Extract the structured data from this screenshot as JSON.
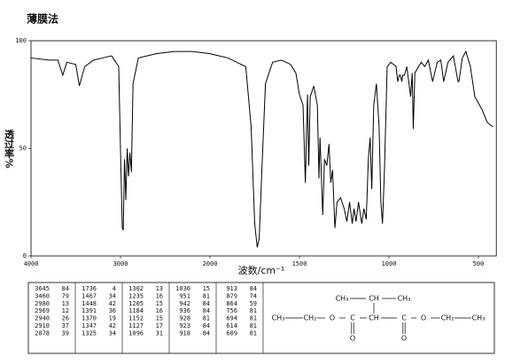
{
  "title": "薄膜法",
  "chart_data": {
    "type": "line",
    "xlabel": "波数/cm⁻¹",
    "ylabel": "透过率%",
    "xlim": [
      4000,
      400
    ],
    "ylim": [
      0,
      100
    ],
    "xticks": [
      4000,
      3000,
      2000,
      1500,
      1000,
      500
    ],
    "yticks": [
      0,
      50,
      100
    ],
    "color": "#000000",
    "x": [
      4000,
      3800,
      3700,
      3645,
      3600,
      3500,
      3460,
      3400,
      3300,
      3200,
      3100,
      3020,
      2995,
      2980,
      2969,
      2955,
      2940,
      2925,
      2910,
      2895,
      2878,
      2860,
      2800,
      2600,
      2400,
      2200,
      2000,
      1900,
      1800,
      1770,
      1750,
      1736,
      1725,
      1710,
      1690,
      1650,
      1600,
      1550,
      1520,
      1500,
      1480,
      1467,
      1460,
      1455,
      1448,
      1440,
      1420,
      1400,
      1391,
      1385,
      1370,
      1360,
      1347,
      1335,
      1325,
      1315,
      1302,
      1290,
      1270,
      1250,
      1235,
      1220,
      1205,
      1195,
      1184,
      1170,
      1152,
      1140,
      1127,
      1115,
      1105,
      1096,
      1085,
      1070,
      1055,
      1045,
      1036,
      1025,
      1010,
      990,
      960,
      951,
      942,
      936,
      928,
      923,
      918,
      913,
      900,
      879,
      870,
      864,
      855,
      820,
      800,
      780,
      756,
      730,
      710,
      694,
      670,
      640,
      614,
      609,
      590,
      570,
      545,
      520,
      480,
      450,
      420
    ],
    "values": [
      92,
      91,
      91,
      84,
      90,
      89,
      79,
      88,
      91,
      92,
      93,
      88,
      40,
      13,
      12,
      45,
      26,
      50,
      37,
      48,
      39,
      80,
      92,
      94,
      95,
      95,
      94,
      92,
      88,
      60,
      15,
      4,
      8,
      40,
      80,
      90,
      91,
      89,
      85,
      75,
      70,
      34,
      60,
      75,
      42,
      74,
      79,
      70,
      36,
      55,
      19,
      45,
      42,
      52,
      34,
      40,
      13,
      25,
      27,
      22,
      16,
      25,
      15,
      22,
      16,
      25,
      15,
      22,
      17,
      45,
      55,
      31,
      70,
      80,
      60,
      25,
      15,
      40,
      88,
      90,
      88,
      81,
      84,
      84,
      81,
      84,
      84,
      84,
      88,
      74,
      85,
      59,
      85,
      90,
      88,
      91,
      81,
      90,
      91,
      81,
      90,
      93,
      81,
      81,
      92,
      95,
      88,
      74,
      68,
      62,
      60
    ]
  },
  "peak_table": {
    "columns": [
      [
        [
          3645,
          84
        ],
        [
          3460,
          79
        ],
        [
          2980,
          13
        ],
        [
          2969,
          12
        ],
        [
          2940,
          26
        ],
        [
          2910,
          37
        ],
        [
          2878,
          39
        ]
      ],
      [
        [
          1736,
          4
        ],
        [
          1467,
          34
        ],
        [
          1448,
          42
        ],
        [
          1391,
          36
        ],
        [
          1370,
          19
        ],
        [
          1347,
          42
        ],
        [
          1325,
          34
        ]
      ],
      [
        [
          1302,
          13
        ],
        [
          1235,
          16
        ],
        [
          1205,
          15
        ],
        [
          1184,
          16
        ],
        [
          1152,
          15
        ],
        [
          1127,
          17
        ],
        [
          1096,
          31
        ]
      ],
      [
        [
          1036,
          15
        ],
        [
          951,
          81
        ],
        [
          942,
          84
        ],
        [
          936,
          84
        ],
        [
          928,
          81
        ],
        [
          923,
          84
        ],
        [
          918,
          84
        ]
      ],
      [
        [
          913,
          84
        ],
        [
          879,
          74
        ],
        [
          864,
          59
        ],
        [
          756,
          81
        ],
        [
          694,
          81
        ],
        [
          614,
          81
        ],
        [
          609,
          81
        ]
      ]
    ]
  },
  "structure": {
    "top": [
      "CH₃",
      "CH",
      "CH₃"
    ],
    "main": [
      "CH₃",
      "CH₂",
      "O",
      "C",
      "CH",
      "C",
      "O",
      "CH₂",
      "CH₃"
    ],
    "carbonyl": [
      "O",
      "O"
    ]
  }
}
